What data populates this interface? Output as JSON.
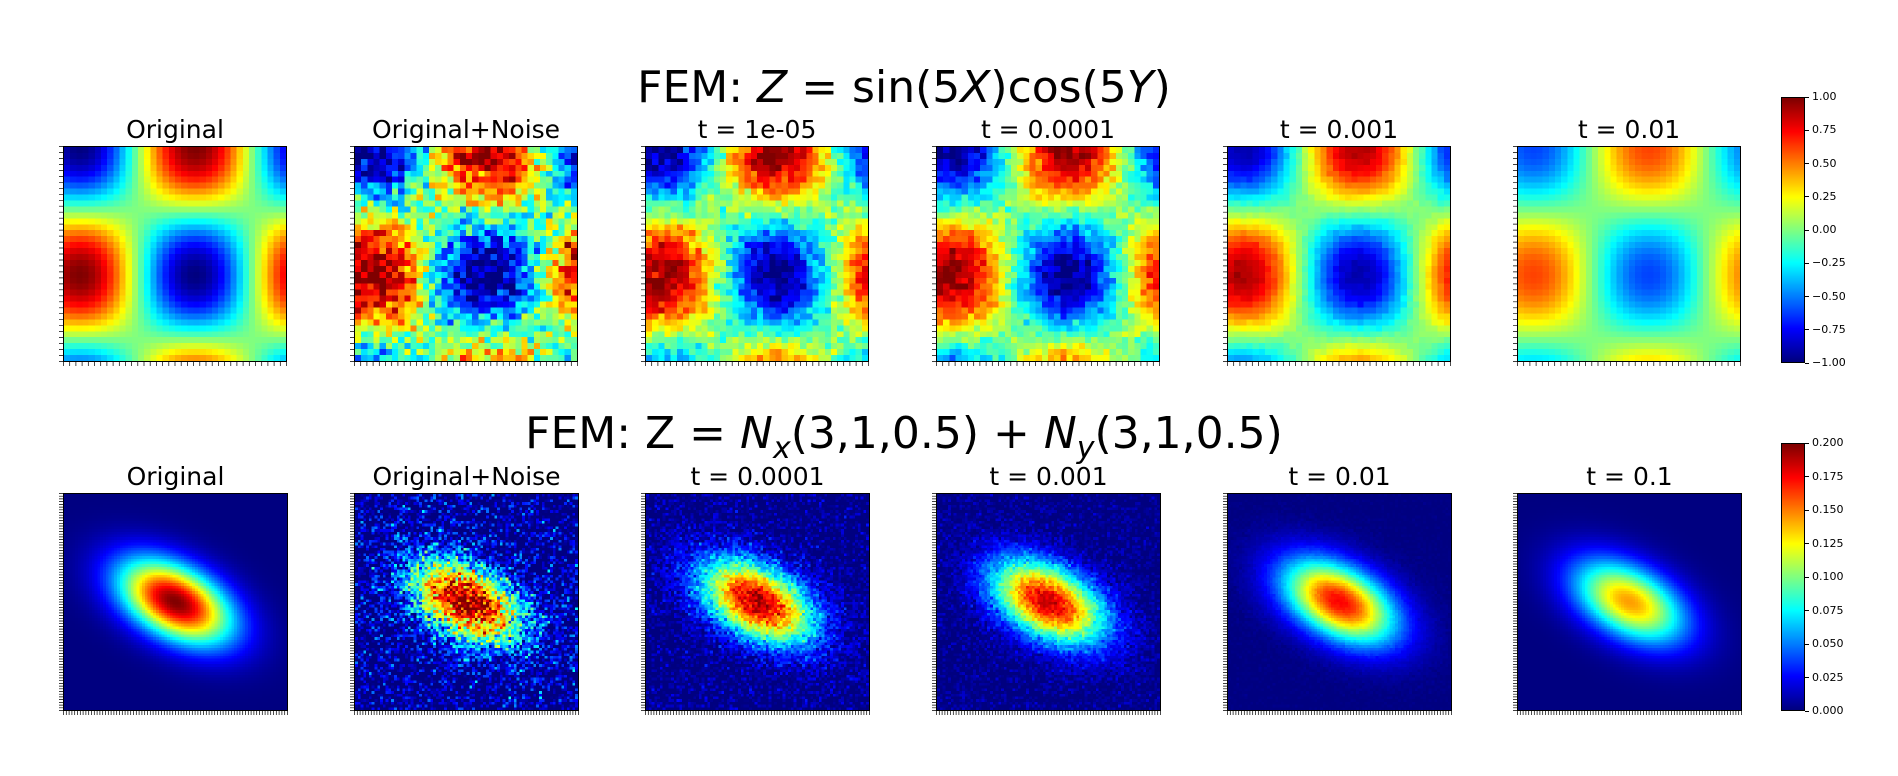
{
  "chart_data": [
    {
      "type": "heatmap",
      "title": "FEM: Z = sin(5X)cos(5Y)",
      "title_parts": {
        "prefix": "FEM: ",
        "var": "Z",
        "eq": " = sin(5",
        "x": "X",
        "mid": ")cos(5",
        "y": "Y",
        "end": ")"
      },
      "colormap": "jet",
      "panels": [
        {
          "label": "Original",
          "kind": "clean",
          "amplitude": 1.0
        },
        {
          "label": "Original+Noise",
          "kind": "noise",
          "amplitude": 1.0
        },
        {
          "label": "t = 1e-05",
          "kind": "smoothed",
          "amplitude": 1.0,
          "noise": 0.55
        },
        {
          "label": "t = 0.0001",
          "kind": "smoothed",
          "amplitude": 0.98,
          "noise": 0.45
        },
        {
          "label": "t = 0.001",
          "kind": "smoothed",
          "amplitude": 0.92,
          "noise": 0.1
        },
        {
          "label": "t = 0.01",
          "kind": "smoothed",
          "amplitude": 0.62,
          "noise": 0.0
        }
      ],
      "colorbar": {
        "range": [
          -1.0,
          1.0
        ],
        "ticks": [
          "1.00",
          "0.75",
          "0.50",
          "0.25",
          "0.00",
          "−0.25",
          "−0.50",
          "−0.75",
          "−1.00"
        ]
      }
    },
    {
      "type": "heatmap",
      "title": "FEM: Z = Nx(3,1,0.5) + Ny(3,1,0.5)",
      "title_parts": {
        "prefix": "FEM: Z = ",
        "n1": "N",
        "s1": "x",
        "args1": "(3,1,0.5) + ",
        "n2": "N",
        "s2": "y",
        "args2": "(3,1,0.5)"
      },
      "colormap": "jet",
      "panels": [
        {
          "label": "Original",
          "kind": "clean",
          "amplitude": 1.0
        },
        {
          "label": "Original+Noise",
          "kind": "noise",
          "amplitude": 1.0
        },
        {
          "label": "t = 0.0001",
          "kind": "smoothed",
          "amplitude": 0.96,
          "noise": 0.45
        },
        {
          "label": "t = 0.001",
          "kind": "smoothed",
          "amplitude": 0.93,
          "noise": 0.3
        },
        {
          "label": "t = 0.01",
          "kind": "smoothed",
          "amplitude": 0.88,
          "noise": 0.05
        },
        {
          "label": "t = 0.1",
          "kind": "smoothed",
          "amplitude": 0.72,
          "noise": 0.0
        }
      ],
      "colorbar": {
        "range": [
          0.0,
          0.2
        ],
        "ticks": [
          "0.200",
          "0.175",
          "0.150",
          "0.125",
          "0.100",
          "0.075",
          "0.050",
          "0.025",
          "0.000"
        ]
      }
    }
  ]
}
